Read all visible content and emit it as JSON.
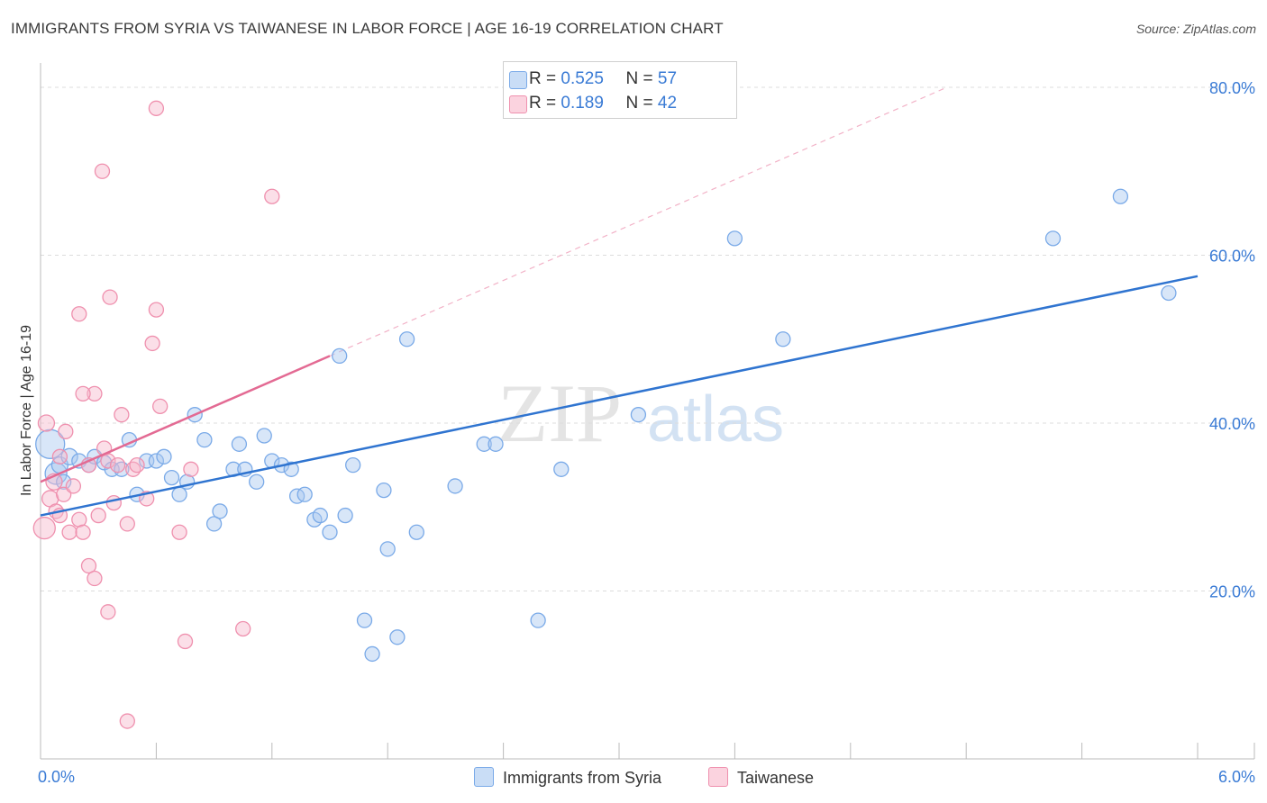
{
  "title": "IMMIGRANTS FROM SYRIA VS TAIWANESE IN LABOR FORCE | AGE 16-19 CORRELATION CHART",
  "source": "Source: ZipAtlas.com",
  "watermark": {
    "zip": "ZIP",
    "atlas": "atlas"
  },
  "legend": {
    "r_label": "R =",
    "n_label": "N =",
    "items": [
      {
        "r": "0.525",
        "n": "57",
        "color": "#a8c8f0"
      },
      {
        "r": "0.189",
        "n": "42",
        "color": "#f6b8cb"
      }
    ]
  },
  "bottom_legend": {
    "syria": "Immigrants from Syria",
    "taiwanese": "Taiwanese"
  },
  "chart_data": {
    "type": "scatter",
    "xlabel": "",
    "ylabel": "In Labor Force | Age 16-19",
    "xlim": [
      0,
      6.0
    ],
    "ylim": [
      0,
      80
    ],
    "x_tick_labels": [
      {
        "v": 0,
        "label": "0.0%"
      },
      {
        "v": 6.0,
        "label": "6.0%"
      }
    ],
    "y_tick_labels": [
      {
        "v": 20,
        "label": "20.0%"
      },
      {
        "v": 40,
        "label": "40.0%"
      },
      {
        "v": 60,
        "label": "60.0%"
      },
      {
        "v": 80,
        "label": "80.0%"
      }
    ],
    "x_minor_ticks": [
      0.6,
      1.2,
      1.8,
      2.4,
      3.0,
      3.6,
      4.2,
      4.8,
      5.4,
      6.0
    ],
    "series": [
      {
        "name": "Immigrants from Syria",
        "color": "#7aaae8",
        "fill": "rgba(168,200,240,0.45)",
        "trend": {
          "x": [
            0.0,
            6.0
          ],
          "y": [
            29.0,
            57.5
          ],
          "color": "#2f74d0"
        },
        "points": [
          {
            "x": 0.05,
            "y": 37.5,
            "s": 16
          },
          {
            "x": 0.08,
            "y": 34,
            "s": 12
          },
          {
            "x": 0.1,
            "y": 35,
            "s": 9
          },
          {
            "x": 0.15,
            "y": 36,
            "s": 9
          },
          {
            "x": 0.2,
            "y": 35.5,
            "s": 8
          },
          {
            "x": 0.25,
            "y": 35,
            "s": 8
          },
          {
            "x": 0.28,
            "y": 36,
            "s": 8
          },
          {
            "x": 0.33,
            "y": 35.3,
            "s": 8
          },
          {
            "x": 0.37,
            "y": 34.5,
            "s": 8
          },
          {
            "x": 0.42,
            "y": 34.5,
            "s": 8
          },
          {
            "x": 0.46,
            "y": 38,
            "s": 8
          },
          {
            "x": 0.5,
            "y": 31.5,
            "s": 8
          },
          {
            "x": 0.55,
            "y": 35.5,
            "s": 8
          },
          {
            "x": 0.6,
            "y": 35.5,
            "s": 8
          },
          {
            "x": 0.64,
            "y": 36,
            "s": 8
          },
          {
            "x": 0.68,
            "y": 33.5,
            "s": 8
          },
          {
            "x": 0.72,
            "y": 31.5,
            "s": 8
          },
          {
            "x": 0.76,
            "y": 33,
            "s": 8
          },
          {
            "x": 0.8,
            "y": 41,
            "s": 8
          },
          {
            "x": 0.85,
            "y": 38,
            "s": 8
          },
          {
            "x": 0.9,
            "y": 28,
            "s": 8
          },
          {
            "x": 0.93,
            "y": 29.5,
            "s": 8
          },
          {
            "x": 1.0,
            "y": 34.5,
            "s": 8
          },
          {
            "x": 1.03,
            "y": 37.5,
            "s": 8
          },
          {
            "x": 1.06,
            "y": 34.5,
            "s": 8
          },
          {
            "x": 1.12,
            "y": 33,
            "s": 8
          },
          {
            "x": 1.16,
            "y": 38.5,
            "s": 8
          },
          {
            "x": 1.2,
            "y": 35.5,
            "s": 8
          },
          {
            "x": 1.25,
            "y": 35,
            "s": 8
          },
          {
            "x": 1.3,
            "y": 34.5,
            "s": 8
          },
          {
            "x": 1.33,
            "y": 31.3,
            "s": 8
          },
          {
            "x": 1.37,
            "y": 31.5,
            "s": 8
          },
          {
            "x": 1.42,
            "y": 28.5,
            "s": 8
          },
          {
            "x": 1.45,
            "y": 29,
            "s": 8
          },
          {
            "x": 1.5,
            "y": 27,
            "s": 8
          },
          {
            "x": 1.55,
            "y": 48,
            "s": 8
          },
          {
            "x": 1.58,
            "y": 29,
            "s": 8
          },
          {
            "x": 1.62,
            "y": 35,
            "s": 8
          },
          {
            "x": 1.68,
            "y": 16.5,
            "s": 8
          },
          {
            "x": 1.72,
            "y": 12.5,
            "s": 8
          },
          {
            "x": 1.78,
            "y": 32,
            "s": 8
          },
          {
            "x": 1.8,
            "y": 25,
            "s": 8
          },
          {
            "x": 1.85,
            "y": 14.5,
            "s": 8
          },
          {
            "x": 1.9,
            "y": 50,
            "s": 8
          },
          {
            "x": 1.95,
            "y": 27,
            "s": 8
          },
          {
            "x": 2.15,
            "y": 32.5,
            "s": 8
          },
          {
            "x": 2.3,
            "y": 37.5,
            "s": 8
          },
          {
            "x": 2.36,
            "y": 37.5,
            "s": 8
          },
          {
            "x": 2.58,
            "y": 16.5,
            "s": 8
          },
          {
            "x": 2.7,
            "y": 34.5,
            "s": 8
          },
          {
            "x": 3.1,
            "y": 41,
            "s": 8
          },
          {
            "x": 3.6,
            "y": 62,
            "s": 8
          },
          {
            "x": 3.85,
            "y": 50,
            "s": 8
          },
          {
            "x": 5.25,
            "y": 62,
            "s": 8
          },
          {
            "x": 5.6,
            "y": 67,
            "s": 8
          },
          {
            "x": 5.85,
            "y": 55.5,
            "s": 8
          },
          {
            "x": 0.12,
            "y": 33,
            "s": 8
          }
        ]
      },
      {
        "name": "Taiwanese",
        "color": "#ef90ae",
        "fill": "rgba(246,184,203,0.45)",
        "trend": {
          "x": [
            0.0,
            1.5
          ],
          "y": [
            33.0,
            48.0
          ],
          "color": "#e36a93"
        },
        "trend_ext": {
          "x": [
            1.5,
            4.7
          ],
          "y": [
            48.0,
            80.0
          ]
        },
        "points": [
          {
            "x": 0.02,
            "y": 27.5,
            "s": 12
          },
          {
            "x": 0.03,
            "y": 40,
            "s": 9
          },
          {
            "x": 0.05,
            "y": 31,
            "s": 9
          },
          {
            "x": 0.07,
            "y": 33,
            "s": 9
          },
          {
            "x": 0.08,
            "y": 29.5,
            "s": 8
          },
          {
            "x": 0.1,
            "y": 29,
            "s": 8
          },
          {
            "x": 0.12,
            "y": 31.5,
            "s": 8
          },
          {
            "x": 0.13,
            "y": 39,
            "s": 8
          },
          {
            "x": 0.15,
            "y": 27,
            "s": 8
          },
          {
            "x": 0.17,
            "y": 32.5,
            "s": 8
          },
          {
            "x": 0.2,
            "y": 28.5,
            "s": 8
          },
          {
            "x": 0.22,
            "y": 27,
            "s": 8
          },
          {
            "x": 0.25,
            "y": 35,
            "s": 8
          },
          {
            "x": 0.28,
            "y": 43.5,
            "s": 8
          },
          {
            "x": 0.3,
            "y": 29,
            "s": 8
          },
          {
            "x": 0.33,
            "y": 37,
            "s": 8
          },
          {
            "x": 0.35,
            "y": 35.5,
            "s": 8
          },
          {
            "x": 0.38,
            "y": 30.5,
            "s": 8
          },
          {
            "x": 0.4,
            "y": 35,
            "s": 8
          },
          {
            "x": 0.42,
            "y": 41,
            "s": 8
          },
          {
            "x": 0.45,
            "y": 28,
            "s": 8
          },
          {
            "x": 0.48,
            "y": 34.5,
            "s": 8
          },
          {
            "x": 0.5,
            "y": 35,
            "s": 8
          },
          {
            "x": 0.55,
            "y": 31,
            "s": 8
          },
          {
            "x": 0.58,
            "y": 49.5,
            "s": 8
          },
          {
            "x": 0.6,
            "y": 53.5,
            "s": 8
          },
          {
            "x": 0.62,
            "y": 42,
            "s": 8
          },
          {
            "x": 0.2,
            "y": 53,
            "s": 8
          },
          {
            "x": 0.25,
            "y": 23,
            "s": 8
          },
          {
            "x": 0.28,
            "y": 21.5,
            "s": 8
          },
          {
            "x": 0.22,
            "y": 43.5,
            "s": 8
          },
          {
            "x": 0.36,
            "y": 55,
            "s": 8
          },
          {
            "x": 0.35,
            "y": 17.5,
            "s": 8
          },
          {
            "x": 0.32,
            "y": 70,
            "s": 8
          },
          {
            "x": 0.6,
            "y": 77.5,
            "s": 8
          },
          {
            "x": 0.45,
            "y": 4.5,
            "s": 8
          },
          {
            "x": 0.72,
            "y": 27,
            "s": 8
          },
          {
            "x": 0.75,
            "y": 14,
            "s": 8
          },
          {
            "x": 0.78,
            "y": 34.5,
            "s": 8
          },
          {
            "x": 1.05,
            "y": 15.5,
            "s": 8
          },
          {
            "x": 1.2,
            "y": 67,
            "s": 8
          },
          {
            "x": 0.1,
            "y": 36,
            "s": 8
          }
        ]
      }
    ]
  }
}
